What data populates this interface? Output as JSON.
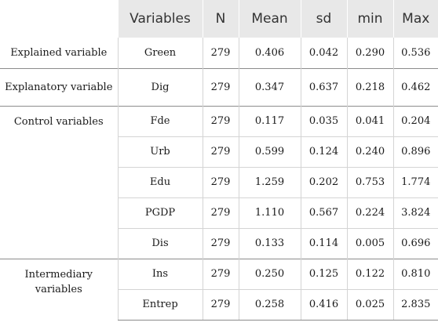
{
  "table": {
    "headers": [
      "Variables",
      "N",
      "Mean",
      "sd",
      "min",
      "Max"
    ],
    "groups": [
      {
        "label": "Explained variable",
        "rows": [
          {
            "variable": "Green",
            "n": "279",
            "mean": "0.406",
            "sd": "0.042",
            "min": "0.290",
            "max": "0.536"
          }
        ]
      },
      {
        "label": "Explanatory variable",
        "rows": [
          {
            "variable": "Dig",
            "n": "279",
            "mean": "0.347",
            "sd": "0.637",
            "min": "0.218",
            "max": "0.462"
          }
        ]
      },
      {
        "label": "Control variables",
        "rows": [
          {
            "variable": "Fde",
            "n": "279",
            "mean": "0.117",
            "sd": "0.035",
            "min": "0.041",
            "max": "0.204"
          },
          {
            "variable": "Urb",
            "n": "279",
            "mean": "0.599",
            "sd": "0.124",
            "min": "0.240",
            "max": "0.896"
          },
          {
            "variable": "Edu",
            "n": "279",
            "mean": "1.259",
            "sd": "0.202",
            "min": "0.753",
            "max": "1.774"
          },
          {
            "variable": "PGDP",
            "n": "279",
            "mean": "1.110",
            "sd": "0.567",
            "min": "0.224",
            "max": "3.824"
          },
          {
            "variable": "Dis",
            "n": "279",
            "mean": "0.133",
            "sd": "0.114",
            "min": "0.005",
            "max": "0.696"
          }
        ]
      },
      {
        "label": "Intermediary variables",
        "rows": [
          {
            "variable": "Ins",
            "n": "279",
            "mean": "0.250",
            "sd": "0.125",
            "min": "0.122",
            "max": "0.810"
          },
          {
            "variable": "Entrep",
            "n": "279",
            "mean": "0.258",
            "sd": "0.416",
            "min": "0.025",
            "max": "2.835"
          }
        ]
      }
    ]
  }
}
